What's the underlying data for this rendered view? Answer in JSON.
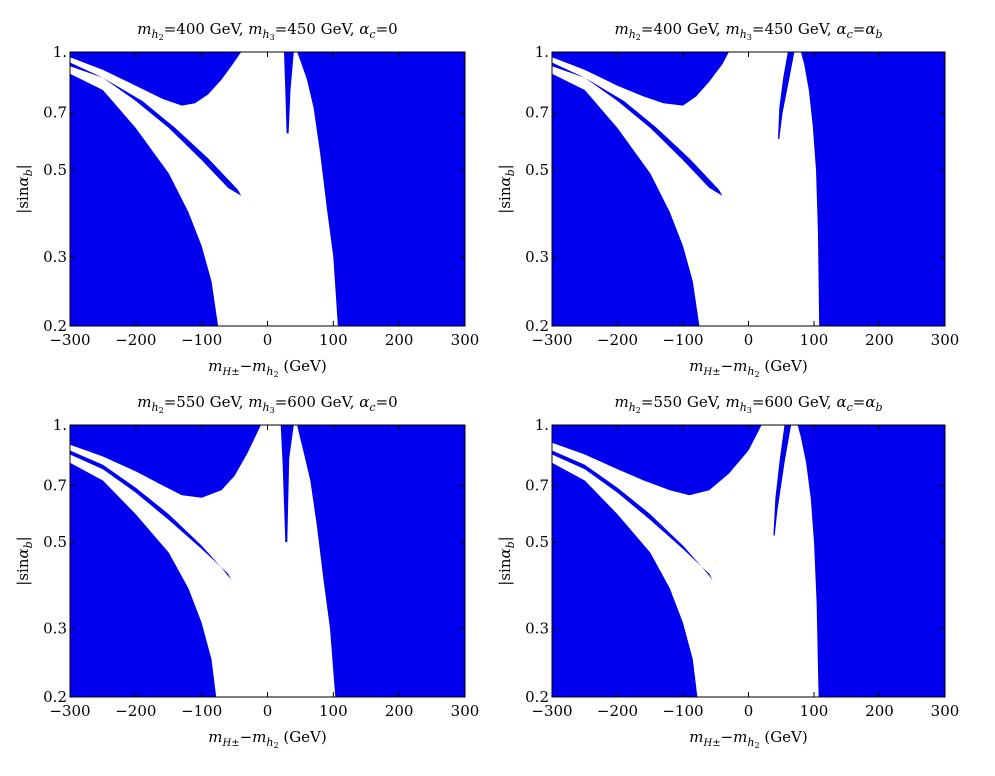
{
  "chart_data": [
    {
      "type": "area",
      "title": {
        "m": "m",
        "s1": "h",
        "s1b": "2",
        "t1": "=400 GeV, ",
        "s2": "h",
        "s2b": "3",
        "t2": "=450 GeV, ",
        "a": "α",
        "as": "c",
        "t3": "=0"
      },
      "xlabel": {
        "m": "m",
        "sub": "H±",
        "mid": "−",
        "m2": "m",
        "sub2": "h",
        "sub2b": "2",
        "unit": " (GeV)"
      },
      "ylabel": {
        "pre": "|sin",
        "a": "α",
        "sub": "b",
        "post": "|"
      },
      "xlim": [
        -300,
        300
      ],
      "ylim": [
        0.2,
        1.0
      ],
      "yscale": "log",
      "xticks": [
        -300,
        -200,
        -100,
        0,
        100,
        200,
        300
      ],
      "yticks": [
        0.2,
        0.3,
        0.5,
        0.7,
        1.0
      ],
      "xtick_labels": [
        "−300",
        "−200",
        "−100",
        "0",
        "100",
        "200",
        "300"
      ],
      "ytick_labels": [
        "0.2",
        "0.3",
        "0.5",
        "0.7",
        "1."
      ],
      "fill_color": "#0000ee",
      "regions": {
        "left": [
          [
            -300,
            0.2
          ],
          [
            -300,
            0.88
          ],
          [
            -250,
            0.8
          ],
          [
            -200,
            0.64
          ],
          [
            -150,
            0.49
          ],
          [
            -120,
            0.39
          ],
          [
            -100,
            0.32
          ],
          [
            -85,
            0.26
          ],
          [
            -75,
            0.2
          ]
        ],
        "top": [
          [
            -300,
            1.0
          ],
          [
            -300,
            0.97
          ],
          [
            -250,
            0.9
          ],
          [
            -200,
            0.82
          ],
          [
            -160,
            0.76
          ],
          [
            -130,
            0.73
          ],
          [
            -110,
            0.74
          ],
          [
            -90,
            0.78
          ],
          [
            -70,
            0.85
          ],
          [
            -55,
            0.92
          ],
          [
            -40,
            1.0
          ]
        ],
        "sliver": [
          [
            -300,
            0.94
          ],
          [
            -250,
            0.86
          ],
          [
            -200,
            0.75
          ],
          [
            -150,
            0.64
          ],
          [
            -100,
            0.53
          ],
          [
            -60,
            0.45
          ],
          [
            -40,
            0.43
          ],
          [
            -45,
            0.445
          ],
          [
            -90,
            0.535
          ],
          [
            -140,
            0.64
          ],
          [
            -190,
            0.75
          ],
          [
            -250,
            0.86
          ],
          [
            -300,
            0.92
          ]
        ],
        "spike": [
          [
            25,
            1.0
          ],
          [
            40,
            1.0
          ],
          [
            35,
            0.8
          ],
          [
            32,
            0.62
          ],
          [
            29,
            0.62
          ],
          [
            27,
            0.8
          ]
        ],
        "right": [
          [
            45,
            1.0
          ],
          [
            300,
            1.0
          ],
          [
            300,
            0.2
          ],
          [
            107,
            0.2
          ],
          [
            100,
            0.3
          ],
          [
            90,
            0.4
          ],
          [
            80,
            0.55
          ],
          [
            70,
            0.72
          ],
          [
            60,
            0.85
          ],
          [
            50,
            0.95
          ]
        ]
      }
    },
    {
      "type": "area",
      "title": {
        "m": "m",
        "s1": "h",
        "s1b": "2",
        "t1": "=400 GeV, ",
        "s2": "h",
        "s2b": "3",
        "t2": "=450 GeV, ",
        "a": "α",
        "as": "c",
        "t3": "=",
        "a2": "α",
        "a2s": "b"
      },
      "xlabel": {
        "m": "m",
        "sub": "H±",
        "mid": "−",
        "m2": "m",
        "sub2": "h",
        "sub2b": "2",
        "unit": " (GeV)"
      },
      "ylabel": {
        "pre": "|sin",
        "a": "α",
        "sub": "b",
        "post": "|"
      },
      "xlim": [
        -300,
        300
      ],
      "ylim": [
        0.2,
        1.0
      ],
      "yscale": "log",
      "xticks": [
        -300,
        -200,
        -100,
        0,
        100,
        200,
        300
      ],
      "yticks": [
        0.2,
        0.3,
        0.5,
        0.7,
        1.0
      ],
      "xtick_labels": [
        "−300",
        "−200",
        "−100",
        "0",
        "100",
        "200",
        "300"
      ],
      "ytick_labels": [
        "0.2",
        "0.3",
        "0.5",
        "0.7",
        "1."
      ],
      "fill_color": "#0000ee",
      "regions": {
        "left": [
          [
            -300,
            0.2
          ],
          [
            -300,
            0.88
          ],
          [
            -250,
            0.8
          ],
          [
            -200,
            0.64
          ],
          [
            -150,
            0.49
          ],
          [
            -120,
            0.39
          ],
          [
            -100,
            0.32
          ],
          [
            -85,
            0.26
          ],
          [
            -75,
            0.2
          ]
        ],
        "top": [
          [
            -300,
            1.0
          ],
          [
            -300,
            0.97
          ],
          [
            -250,
            0.9
          ],
          [
            -200,
            0.82
          ],
          [
            -160,
            0.77
          ],
          [
            -130,
            0.74
          ],
          [
            -100,
            0.73
          ],
          [
            -80,
            0.77
          ],
          [
            -60,
            0.84
          ],
          [
            -40,
            0.93
          ],
          [
            -30,
            1.0
          ]
        ],
        "sliver": [
          [
            -300,
            0.94
          ],
          [
            -250,
            0.86
          ],
          [
            -200,
            0.75
          ],
          [
            -150,
            0.64
          ],
          [
            -100,
            0.53
          ],
          [
            -60,
            0.45
          ],
          [
            -40,
            0.43
          ],
          [
            -45,
            0.445
          ],
          [
            -90,
            0.535
          ],
          [
            -140,
            0.64
          ],
          [
            -190,
            0.75
          ],
          [
            -250,
            0.86
          ],
          [
            -300,
            0.92
          ]
        ],
        "spike": [
          [
            60,
            1.0
          ],
          [
            70,
            1.0
          ],
          [
            62,
            0.85
          ],
          [
            52,
            0.7
          ],
          [
            47,
            0.6
          ],
          [
            45,
            0.6
          ],
          [
            47,
            0.72
          ],
          [
            53,
            0.86
          ]
        ],
        "right": [
          [
            80,
            1.0
          ],
          [
            300,
            1.0
          ],
          [
            300,
            0.2
          ],
          [
            108,
            0.2
          ],
          [
            106,
            0.35
          ],
          [
            103,
            0.5
          ],
          [
            98,
            0.65
          ],
          [
            92,
            0.8
          ],
          [
            85,
            0.93
          ]
        ]
      }
    },
    {
      "type": "area",
      "title": {
        "m": "m",
        "s1": "h",
        "s1b": "2",
        "t1": "=550 GeV, ",
        "s2": "h",
        "s2b": "3",
        "t2": "=600 GeV, ",
        "a": "α",
        "as": "c",
        "t3": "=0"
      },
      "xlabel": {
        "m": "m",
        "sub": "H±",
        "mid": "−",
        "m2": "m",
        "sub2": "h",
        "sub2b": "2",
        "unit": " (GeV)"
      },
      "ylabel": {
        "pre": "|sin",
        "a": "α",
        "sub": "b",
        "post": "|"
      },
      "xlim": [
        -300,
        300
      ],
      "ylim": [
        0.2,
        1.0
      ],
      "yscale": "log",
      "xticks": [
        -300,
        -200,
        -100,
        0,
        100,
        200,
        300
      ],
      "yticks": [
        0.2,
        0.3,
        0.5,
        0.7,
        1.0
      ],
      "xtick_labels": [
        "−300",
        "−200",
        "−100",
        "0",
        "100",
        "200",
        "300"
      ],
      "ytick_labels": [
        "0.2",
        "0.3",
        "0.5",
        "0.7",
        "1."
      ],
      "fill_color": "#0000ee",
      "regions": {
        "left": [
          [
            -300,
            0.2
          ],
          [
            -300,
            0.8
          ],
          [
            -250,
            0.72
          ],
          [
            -200,
            0.59
          ],
          [
            -150,
            0.47
          ],
          [
            -120,
            0.38
          ],
          [
            -100,
            0.31
          ],
          [
            -85,
            0.25
          ],
          [
            -78,
            0.2
          ]
        ],
        "top": [
          [
            -300,
            1.0
          ],
          [
            -300,
            0.89
          ],
          [
            -250,
            0.83
          ],
          [
            -200,
            0.76
          ],
          [
            -160,
            0.7
          ],
          [
            -130,
            0.66
          ],
          [
            -100,
            0.65
          ],
          [
            -70,
            0.68
          ],
          [
            -50,
            0.74
          ],
          [
            -30,
            0.85
          ],
          [
            -10,
            1.0
          ]
        ],
        "sliver": [
          [
            -300,
            0.86
          ],
          [
            -250,
            0.79
          ],
          [
            -200,
            0.69
          ],
          [
            -150,
            0.59
          ],
          [
            -100,
            0.49
          ],
          [
            -70,
            0.43
          ],
          [
            -55,
            0.4
          ],
          [
            -60,
            0.415
          ],
          [
            -100,
            0.48
          ],
          [
            -150,
            0.57
          ],
          [
            -200,
            0.67
          ],
          [
            -250,
            0.77
          ],
          [
            -300,
            0.84
          ]
        ],
        "spike": [
          [
            20,
            1.0
          ],
          [
            40,
            1.0
          ],
          [
            33,
            0.82
          ],
          [
            30,
            0.5
          ],
          [
            27,
            0.5
          ],
          [
            23,
            0.8
          ]
        ],
        "right": [
          [
            45,
            1.0
          ],
          [
            300,
            1.0
          ],
          [
            300,
            0.2
          ],
          [
            103,
            0.2
          ],
          [
            95,
            0.3
          ],
          [
            85,
            0.4
          ],
          [
            75,
            0.55
          ],
          [
            65,
            0.72
          ],
          [
            55,
            0.85
          ],
          [
            48,
            0.95
          ]
        ]
      }
    },
    {
      "type": "area",
      "title": {
        "m": "m",
        "s1": "h",
        "s1b": "2",
        "t1": "=550 GeV, ",
        "s2": "h",
        "s2b": "3",
        "t2": "=600 GeV, ",
        "a": "α",
        "as": "c",
        "t3": "=",
        "a2": "α",
        "a2s": "b"
      },
      "xlabel": {
        "m": "m",
        "sub": "H±",
        "mid": "−",
        "m2": "m",
        "sub2": "h",
        "sub2b": "2",
        "unit": " (GeV)"
      },
      "ylabel": {
        "pre": "|sin",
        "a": "α",
        "sub": "b",
        "post": "|"
      },
      "xlim": [
        -300,
        300
      ],
      "ylim": [
        0.2,
        1.0
      ],
      "yscale": "log",
      "xticks": [
        -300,
        -200,
        -100,
        0,
        100,
        200,
        300
      ],
      "yticks": [
        0.2,
        0.3,
        0.5,
        0.7,
        1.0
      ],
      "xtick_labels": [
        "−300",
        "−200",
        "−100",
        "0",
        "100",
        "200",
        "300"
      ],
      "ytick_labels": [
        "0.2",
        "0.3",
        "0.5",
        "0.7",
        "1."
      ],
      "fill_color": "#0000ee",
      "regions": {
        "left": [
          [
            -300,
            0.2
          ],
          [
            -300,
            0.8
          ],
          [
            -250,
            0.72
          ],
          [
            -200,
            0.59
          ],
          [
            -150,
            0.47
          ],
          [
            -120,
            0.38
          ],
          [
            -100,
            0.31
          ],
          [
            -85,
            0.25
          ],
          [
            -78,
            0.2
          ]
        ],
        "top": [
          [
            -300,
            1.0
          ],
          [
            -300,
            0.9
          ],
          [
            -250,
            0.84
          ],
          [
            -200,
            0.77
          ],
          [
            -160,
            0.72
          ],
          [
            -120,
            0.68
          ],
          [
            -90,
            0.66
          ],
          [
            -60,
            0.68
          ],
          [
            -30,
            0.75
          ],
          [
            0,
            0.86
          ],
          [
            20,
            1.0
          ]
        ],
        "sliver": [
          [
            -300,
            0.86
          ],
          [
            -250,
            0.79
          ],
          [
            -200,
            0.69
          ],
          [
            -150,
            0.59
          ],
          [
            -100,
            0.49
          ],
          [
            -70,
            0.43
          ],
          [
            -55,
            0.4
          ],
          [
            -60,
            0.415
          ],
          [
            -100,
            0.48
          ],
          [
            -150,
            0.57
          ],
          [
            -200,
            0.67
          ],
          [
            -250,
            0.77
          ],
          [
            -300,
            0.84
          ]
        ],
        "spike": [
          [
            55,
            1.0
          ],
          [
            65,
            1.0
          ],
          [
            55,
            0.8
          ],
          [
            44,
            0.6
          ],
          [
            40,
            0.52
          ],
          [
            38,
            0.52
          ],
          [
            41,
            0.65
          ],
          [
            48,
            0.82
          ]
        ],
        "right": [
          [
            75,
            1.0
          ],
          [
            300,
            1.0
          ],
          [
            300,
            0.2
          ],
          [
            107,
            0.2
          ],
          [
            104,
            0.35
          ],
          [
            100,
            0.5
          ],
          [
            95,
            0.65
          ],
          [
            88,
            0.8
          ],
          [
            80,
            0.93
          ]
        ]
      }
    }
  ]
}
